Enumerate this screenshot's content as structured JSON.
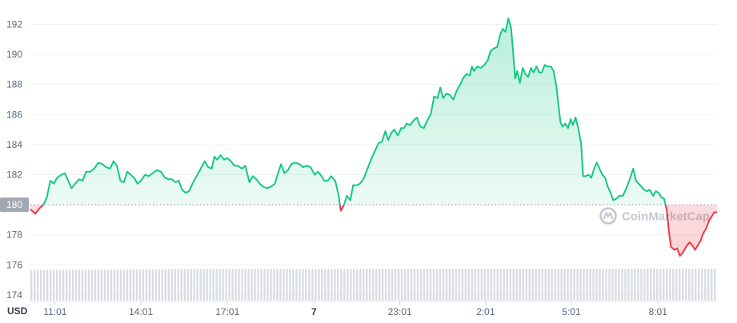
{
  "chart_data": {
    "type": "area",
    "currency_label": "USD",
    "reference_value": 180,
    "reference_label": "180",
    "watermark": "CoinMarketCap",
    "ylim": [
      173.2,
      193.3
    ],
    "y_ticks": [
      174,
      176,
      178,
      180,
      182,
      184,
      186,
      188,
      190,
      192
    ],
    "y_tick_labels": [
      "174",
      "176",
      "178",
      "180",
      "182",
      "184",
      "186",
      "188",
      "190",
      "192"
    ],
    "x_range": [
      0,
      100
    ],
    "x_ticks": [
      {
        "x": 3.6,
        "label": "11:01",
        "bold": false
      },
      {
        "x": 16.1,
        "label": "14:01",
        "bold": false
      },
      {
        "x": 28.7,
        "label": "17:01",
        "bold": false
      },
      {
        "x": 41.3,
        "label": "7",
        "bold": true
      },
      {
        "x": 53.8,
        "label": "23:01",
        "bold": false
      },
      {
        "x": 66.3,
        "label": "2:01",
        "bold": false
      },
      {
        "x": 78.8,
        "label": "5:01",
        "bold": false
      },
      {
        "x": 91.4,
        "label": "8:01",
        "bold": false
      }
    ],
    "colors": {
      "up": "#16c784",
      "down": "#ea3943",
      "reference": "#9ca3af",
      "volume": "#d9dce1",
      "grid": "#eff2f5"
    },
    "series": [
      {
        "values": [
          [
            0,
            179.7
          ],
          [
            0.7,
            179.4
          ],
          [
            1.4,
            179.8
          ],
          [
            1.9,
            180.0
          ],
          [
            2.4,
            180.5
          ],
          [
            2.9,
            181.6
          ],
          [
            3.4,
            181.4
          ],
          [
            3.9,
            181.8
          ],
          [
            4.5,
            182.0
          ],
          [
            5.0,
            182.1
          ],
          [
            5.5,
            181.6
          ],
          [
            6.0,
            181.1
          ],
          [
            6.5,
            181.4
          ],
          [
            7.1,
            181.7
          ],
          [
            7.6,
            181.6
          ],
          [
            8.1,
            182.2
          ],
          [
            8.7,
            182.2
          ],
          [
            9.3,
            182.4
          ],
          [
            9.9,
            182.8
          ],
          [
            10.5,
            182.7
          ],
          [
            11.0,
            182.5
          ],
          [
            11.6,
            182.4
          ],
          [
            12.1,
            182.9
          ],
          [
            12.6,
            182.6
          ],
          [
            13.1,
            181.6
          ],
          [
            13.6,
            181.5
          ],
          [
            14.1,
            182.2
          ],
          [
            14.6,
            182.0
          ],
          [
            15.1,
            181.8
          ],
          [
            15.6,
            181.4
          ],
          [
            16.1,
            181.6
          ],
          [
            16.7,
            182.0
          ],
          [
            17.2,
            181.9
          ],
          [
            17.8,
            182.1
          ],
          [
            18.4,
            182.3
          ],
          [
            19.0,
            182.2
          ],
          [
            19.6,
            181.8
          ],
          [
            20.1,
            181.7
          ],
          [
            20.6,
            181.7
          ],
          [
            21.1,
            181.5
          ],
          [
            21.6,
            181.6
          ],
          [
            22.1,
            181.0
          ],
          [
            22.6,
            180.8
          ],
          [
            23.1,
            180.9
          ],
          [
            23.6,
            181.4
          ],
          [
            24.2,
            181.9
          ],
          [
            24.8,
            182.4
          ],
          [
            25.4,
            182.9
          ],
          [
            25.9,
            182.5
          ],
          [
            26.4,
            182.4
          ],
          [
            26.8,
            183.2
          ],
          [
            27.2,
            183.0
          ],
          [
            27.7,
            183.3
          ],
          [
            28.2,
            183.0
          ],
          [
            28.7,
            183.1
          ],
          [
            29.2,
            182.9
          ],
          [
            29.7,
            182.6
          ],
          [
            30.2,
            182.6
          ],
          [
            30.8,
            182.4
          ],
          [
            31.3,
            182.6
          ],
          [
            31.9,
            181.5
          ],
          [
            32.4,
            181.9
          ],
          [
            32.9,
            181.7
          ],
          [
            33.4,
            181.4
          ],
          [
            33.9,
            181.2
          ],
          [
            34.5,
            181.1
          ],
          [
            35.0,
            181.2
          ],
          [
            35.6,
            181.4
          ],
          [
            36.0,
            182.0
          ],
          [
            36.5,
            182.7
          ],
          [
            37.0,
            182.1
          ],
          [
            37.5,
            182.3
          ],
          [
            38.0,
            182.7
          ],
          [
            38.6,
            182.8
          ],
          [
            39.2,
            182.7
          ],
          [
            39.7,
            182.5
          ],
          [
            40.3,
            182.6
          ],
          [
            40.8,
            182.5
          ],
          [
            41.4,
            182.0
          ],
          [
            41.9,
            182.2
          ],
          [
            42.4,
            181.9
          ],
          [
            42.8,
            181.6
          ],
          [
            43.3,
            181.6
          ],
          [
            43.8,
            181.9
          ],
          [
            44.4,
            181.6
          ],
          [
            44.9,
            180.6
          ],
          [
            45.2,
            179.6
          ],
          [
            45.6,
            179.9
          ],
          [
            46.1,
            180.6
          ],
          [
            46.6,
            180.3
          ],
          [
            47.0,
            181.3
          ],
          [
            47.5,
            181.3
          ],
          [
            48.0,
            181.4
          ],
          [
            48.6,
            181.8
          ],
          [
            49.1,
            182.4
          ],
          [
            49.6,
            183.0
          ],
          [
            50.2,
            183.6
          ],
          [
            50.7,
            184.1
          ],
          [
            51.2,
            184.2
          ],
          [
            51.7,
            184.9
          ],
          [
            52.1,
            184.3
          ],
          [
            52.6,
            184.8
          ],
          [
            53.0,
            185.0
          ],
          [
            53.5,
            184.6
          ],
          [
            54.0,
            185.1
          ],
          [
            54.4,
            185.1
          ],
          [
            54.8,
            185.4
          ],
          [
            55.3,
            185.3
          ],
          [
            55.8,
            185.6
          ],
          [
            56.3,
            185.8
          ],
          [
            56.8,
            185.2
          ],
          [
            57.3,
            185.1
          ],
          [
            57.8,
            185.6
          ],
          [
            58.3,
            186.0
          ],
          [
            58.8,
            187.2
          ],
          [
            59.3,
            187.1
          ],
          [
            59.7,
            187.8
          ],
          [
            60.1,
            187.1
          ],
          [
            60.6,
            187.4
          ],
          [
            61.1,
            187.3
          ],
          [
            61.6,
            187.0
          ],
          [
            62.1,
            187.6
          ],
          [
            62.6,
            188.0
          ],
          [
            63.0,
            188.4
          ],
          [
            63.5,
            188.7
          ],
          [
            64.0,
            188.6
          ],
          [
            64.3,
            189.2
          ],
          [
            64.6,
            188.9
          ],
          [
            65.1,
            189.2
          ],
          [
            65.6,
            189.1
          ],
          [
            66.1,
            189.3
          ],
          [
            66.6,
            189.6
          ],
          [
            67.0,
            190.2
          ],
          [
            67.5,
            190.4
          ],
          [
            68.0,
            190.5
          ],
          [
            68.4,
            191.3
          ],
          [
            68.8,
            191.7
          ],
          [
            69.2,
            191.5
          ],
          [
            69.6,
            192.4
          ],
          [
            70.0,
            191.8
          ],
          [
            70.3,
            190.2
          ],
          [
            70.6,
            188.4
          ],
          [
            70.9,
            188.9
          ],
          [
            71.3,
            188.1
          ],
          [
            71.7,
            189.1
          ],
          [
            72.1,
            188.7
          ],
          [
            72.5,
            188.5
          ],
          [
            72.9,
            189.1
          ],
          [
            73.3,
            188.8
          ],
          [
            73.7,
            189.2
          ],
          [
            74.1,
            188.8
          ],
          [
            74.5,
            188.8
          ],
          [
            74.9,
            189.3
          ],
          [
            75.3,
            189.2
          ],
          [
            75.8,
            189.2
          ],
          [
            76.2,
            188.9
          ],
          [
            76.6,
            187.9
          ],
          [
            76.9,
            186.7
          ],
          [
            77.2,
            185.5
          ],
          [
            77.5,
            185.2
          ],
          [
            77.9,
            185.4
          ],
          [
            78.3,
            185.1
          ],
          [
            78.7,
            185.7
          ],
          [
            79.0,
            185.3
          ],
          [
            79.4,
            185.8
          ],
          [
            79.8,
            185.1
          ],
          [
            80.2,
            184.1
          ],
          [
            80.5,
            181.9
          ],
          [
            80.9,
            181.9
          ],
          [
            81.3,
            182.0
          ],
          [
            81.7,
            181.8
          ],
          [
            82.1,
            182.4
          ],
          [
            82.5,
            182.8
          ],
          [
            82.9,
            182.4
          ],
          [
            83.3,
            182.0
          ],
          [
            83.7,
            181.8
          ],
          [
            84.1,
            181.2
          ],
          [
            84.5,
            180.8
          ],
          [
            84.9,
            180.3
          ],
          [
            85.3,
            180.4
          ],
          [
            85.8,
            180.6
          ],
          [
            86.3,
            180.6
          ],
          [
            86.8,
            181.1
          ],
          [
            87.3,
            181.7
          ],
          [
            87.8,
            182.4
          ],
          [
            88.2,
            181.6
          ],
          [
            88.6,
            181.4
          ],
          [
            89.0,
            181.2
          ],
          [
            89.4,
            181.0
          ],
          [
            89.8,
            180.9
          ],
          [
            90.2,
            181.0
          ],
          [
            90.7,
            180.6
          ],
          [
            91.1,
            180.9
          ],
          [
            91.5,
            180.8
          ],
          [
            91.9,
            180.5
          ],
          [
            92.3,
            180.4
          ],
          [
            92.7,
            179.6
          ],
          [
            93.0,
            178.2
          ],
          [
            93.3,
            177.2
          ],
          [
            93.8,
            177.0
          ],
          [
            94.2,
            177.1
          ],
          [
            94.6,
            176.6
          ],
          [
            95.0,
            176.8
          ],
          [
            95.5,
            177.2
          ],
          [
            96.0,
            177.5
          ],
          [
            96.4,
            177.3
          ],
          [
            96.8,
            177.0
          ],
          [
            97.2,
            177.3
          ],
          [
            97.6,
            177.6
          ],
          [
            98.0,
            178.1
          ],
          [
            98.4,
            178.4
          ],
          [
            98.8,
            178.9
          ],
          [
            99.2,
            179.2
          ],
          [
            99.6,
            179.5
          ],
          [
            100,
            179.5
          ]
        ]
      }
    ],
    "volume_levels": [
      0.62,
      0.8,
      0.92,
      0.88,
      0.96,
      1.0,
      0.98,
      1.0
    ]
  }
}
